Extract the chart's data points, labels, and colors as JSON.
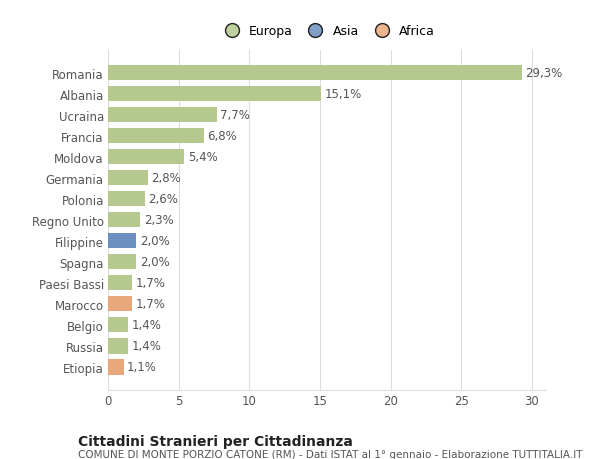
{
  "categories": [
    "Romania",
    "Albania",
    "Ucraina",
    "Francia",
    "Moldova",
    "Germania",
    "Polonia",
    "Regno Unito",
    "Filippine",
    "Spagna",
    "Paesi Bassi",
    "Marocco",
    "Belgio",
    "Russia",
    "Etiopia"
  ],
  "values": [
    29.3,
    15.1,
    7.7,
    6.8,
    5.4,
    2.8,
    2.6,
    2.3,
    2.0,
    2.0,
    1.7,
    1.7,
    1.4,
    1.4,
    1.1
  ],
  "labels": [
    "29,3%",
    "15,1%",
    "7,7%",
    "6,8%",
    "5,4%",
    "2,8%",
    "2,6%",
    "2,3%",
    "2,0%",
    "2,0%",
    "1,7%",
    "1,7%",
    "1,4%",
    "1,4%",
    "1,1%"
  ],
  "bar_colors": [
    "#b5c98e",
    "#b5c98e",
    "#b5c98e",
    "#b5c98e",
    "#b5c98e",
    "#b5c98e",
    "#b5c98e",
    "#b5c98e",
    "#6b8fbf",
    "#b5c98e",
    "#b5c98e",
    "#e8a87c",
    "#b5c98e",
    "#b5c98e",
    "#e8a87c"
  ],
  "continent_colors": {
    "Europa": "#b5c98e",
    "Asia": "#6b8fbf",
    "Africa": "#e8a87c"
  },
  "xlim": [
    0,
    31
  ],
  "xticks": [
    0,
    5,
    10,
    15,
    20,
    25,
    30
  ],
  "background_color": "#ffffff",
  "grid_color": "#dddddd",
  "title": "Cittadini Stranieri per Cittadinanza",
  "subtitle": "COMUNE DI MONTE PORZIO CATONE (RM) - Dati ISTAT al 1° gennaio - Elaborazione TUTTITALIA.IT",
  "bar_height": 0.72,
  "label_fontsize": 8.5,
  "title_fontsize": 10,
  "subtitle_fontsize": 7.5,
  "tick_fontsize": 8.5,
  "legend_fontsize": 9
}
